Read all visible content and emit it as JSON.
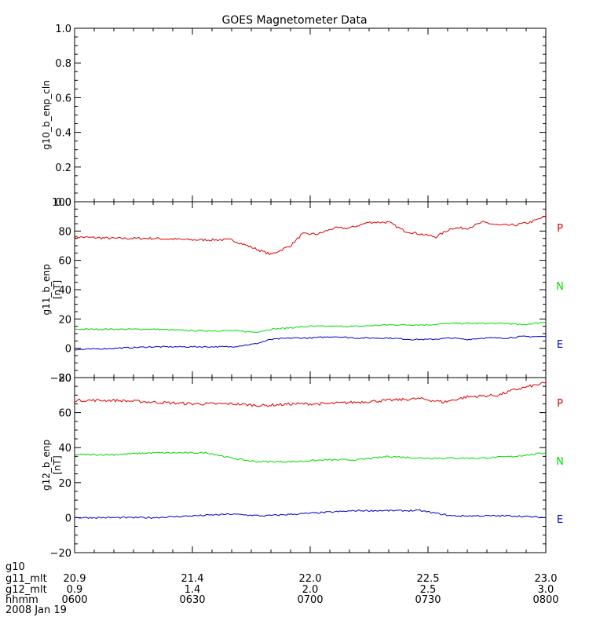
{
  "colors": {
    "P": "#dd0000",
    "N": "#00dd00",
    "E": "#0000cc",
    "axis": "#000000"
  },
  "chart_data": {
    "type": "line",
    "title": "GOES Magnetometer Data",
    "date": "2008 Jan 19",
    "x_range_minutes": [
      0,
      120
    ],
    "footer_rows": [
      {
        "label": "g10",
        "values": []
      },
      {
        "label": "g11_mlt",
        "values": [
          "20.9",
          "21.4",
          "22.0",
          "22.5",
          "23.0"
        ]
      },
      {
        "label": "g12_mlt",
        "values": [
          "0.9",
          "1.4",
          "2.0",
          "2.5",
          "3.0"
        ]
      },
      {
        "label": "hhmm",
        "values": [
          "0600",
          "0630",
          "0700",
          "0730",
          "0800"
        ]
      }
    ],
    "panels": [
      {
        "ylabel": "g10_b_enp_cln",
        "unit": "",
        "ylim": [
          0,
          1
        ],
        "yticks": [
          "0.0",
          "0.2",
          "0.4",
          "0.6",
          "0.8",
          "1.0"
        ],
        "ytick_values": [
          0,
          0.2,
          0.4,
          0.6,
          0.8,
          1.0
        ],
        "series": []
      },
      {
        "ylabel": "g11_b_enp",
        "unit": "[nT]",
        "ylim": [
          -20,
          100
        ],
        "yticks": [
          "−20",
          "0",
          "20",
          "40",
          "60",
          "80",
          "100"
        ],
        "ytick_values": [
          -20,
          0,
          20,
          40,
          60,
          80,
          100
        ],
        "series": [
          {
            "name": "P",
            "x": [
              0,
              10,
              20,
              30,
              40,
              46,
              50,
              55,
              58,
              62,
              66,
              70,
              75,
              80,
              84,
              88,
              92,
              96,
              100,
              104,
              108,
              112,
              116,
              120
            ],
            "values": [
              76,
              75,
              75,
              74,
              74,
              68,
              64,
              70,
              78,
              78,
              82,
              82,
              86,
              86,
              80,
              78,
              76,
              82,
              82,
              86,
              84,
              84,
              86,
              90
            ]
          },
          {
            "name": "N",
            "x": [
              0,
              10,
              20,
              30,
              40,
              46,
              50,
              55,
              60,
              66,
              72,
              80,
              86,
              90,
              96,
              100,
              104,
              110,
              114,
              120
            ],
            "values": [
              13,
              13,
              13,
              12,
              12,
              11,
              13,
              14,
              15,
              15,
              15,
              16,
              16,
              16,
              17,
              17,
              17,
              17,
              16,
              18
            ]
          },
          {
            "name": "E",
            "x": [
              0,
              10,
              20,
              30,
              40,
              46,
              50,
              55,
              60,
              66,
              72,
              80,
              86,
              90,
              96,
              100,
              104,
              110,
              114,
              120
            ],
            "values": [
              -1,
              0,
              1,
              1,
              1,
              3,
              6,
              7,
              7,
              8,
              7,
              7,
              6,
              6,
              7,
              6,
              7,
              7,
              8,
              8
            ]
          }
        ]
      },
      {
        "ylabel": "g12_b_enp",
        "unit": "[nT]",
        "ylim": [
          -20,
          80
        ],
        "yticks": [
          "−20",
          "0",
          "20",
          "40",
          "60",
          "80"
        ],
        "ytick_values": [
          -20,
          0,
          20,
          40,
          60,
          80
        ],
        "series": [
          {
            "name": "P",
            "x": [
              0,
              10,
              20,
              30,
              40,
              48,
              56,
              64,
              72,
              80,
              88,
              94,
              100,
              108,
              112,
              120
            ],
            "values": [
              67,
              67,
              66,
              65,
              65,
              64,
              65,
              65,
              66,
              67,
              68,
              66,
              69,
              70,
              73,
              77
            ]
          },
          {
            "name": "N",
            "x": [
              0,
              10,
              20,
              30,
              34,
              40,
              46,
              56,
              64,
              72,
              80,
              88,
              96,
              104,
              112,
              120
            ],
            "values": [
              36,
              36,
              37,
              37,
              37,
              34,
              32,
              32,
              33,
              33,
              35,
              34,
              34,
              34,
              35,
              37
            ]
          },
          {
            "name": "E",
            "x": [
              0,
              10,
              20,
              30,
              40,
              48,
              56,
              64,
              72,
              80,
              88,
              96,
              104,
              112,
              120
            ],
            "values": [
              0,
              0,
              0,
              1,
              2,
              1,
              2,
              3,
              4,
              4,
              4,
              1,
              1,
              1,
              0
            ]
          }
        ]
      }
    ]
  }
}
